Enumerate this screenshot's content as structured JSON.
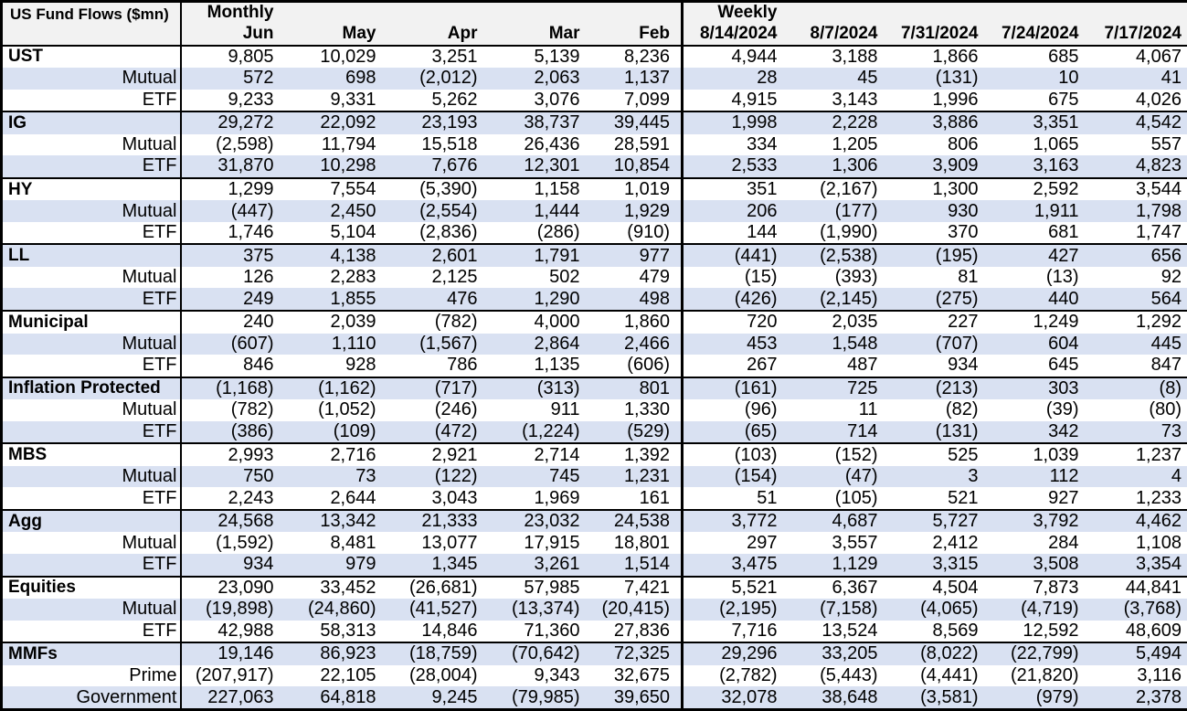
{
  "colors": {
    "band": "#D9E1F2",
    "header_bg": "#F2F2F2",
    "border": "#000000",
    "text": "#000000"
  },
  "header": {
    "corner_label": "US Fund Flows ($mn)",
    "monthly_label": "Monthly",
    "weekly_label": "Weekly"
  },
  "chart_data": {
    "type": "table",
    "title": "US Fund Flows ($mn)",
    "column_groups": [
      {
        "label": "Monthly",
        "columns": [
          "Jun",
          "May",
          "Apr",
          "Mar",
          "Feb"
        ]
      },
      {
        "label": "Weekly",
        "columns": [
          "8/14/2024",
          "8/7/2024",
          "7/31/2024",
          "7/24/2024",
          "7/17/2024"
        ]
      }
    ],
    "columns": [
      "Jun",
      "May",
      "Apr",
      "Mar",
      "Feb",
      "8/14/2024",
      "8/7/2024",
      "7/31/2024",
      "7/24/2024",
      "7/17/2024"
    ],
    "groups": [
      {
        "name": "UST",
        "rows": [
          {
            "label": "UST",
            "style": "group",
            "values": [
              "9,805",
              "10,029",
              "3,251",
              "5,139",
              "8,236",
              "4,944",
              "3,188",
              "1,866",
              "685",
              "4,067"
            ]
          },
          {
            "label": "Mutual",
            "style": "sub",
            "values": [
              "572",
              "698",
              "(2,012)",
              "2,063",
              "1,137",
              "28",
              "45",
              "(131)",
              "10",
              "41"
            ]
          },
          {
            "label": "ETF",
            "style": "sub",
            "values": [
              "9,233",
              "9,331",
              "5,262",
              "3,076",
              "7,099",
              "4,915",
              "3,143",
              "1,996",
              "675",
              "4,026"
            ]
          }
        ]
      },
      {
        "name": "IG",
        "rows": [
          {
            "label": "IG",
            "style": "group",
            "values": [
              "29,272",
              "22,092",
              "23,193",
              "38,737",
              "39,445",
              "1,998",
              "2,228",
              "3,886",
              "3,351",
              "4,542"
            ]
          },
          {
            "label": "Mutual",
            "style": "sub",
            "values": [
              "(2,598)",
              "11,794",
              "15,518",
              "26,436",
              "28,591",
              "334",
              "1,205",
              "806",
              "1,065",
              "557"
            ]
          },
          {
            "label": "ETF",
            "style": "sub",
            "values": [
              "31,870",
              "10,298",
              "7,676",
              "12,301",
              "10,854",
              "2,533",
              "1,306",
              "3,909",
              "3,163",
              "4,823"
            ]
          }
        ]
      },
      {
        "name": "HY",
        "rows": [
          {
            "label": "HY",
            "style": "group",
            "values": [
              "1,299",
              "7,554",
              "(5,390)",
              "1,158",
              "1,019",
              "351",
              "(2,167)",
              "1,300",
              "2,592",
              "3,544"
            ]
          },
          {
            "label": "Mutual",
            "style": "sub",
            "values": [
              "(447)",
              "2,450",
              "(2,554)",
              "1,444",
              "1,929",
              "206",
              "(177)",
              "930",
              "1,911",
              "1,798"
            ]
          },
          {
            "label": "ETF",
            "style": "sub",
            "values": [
              "1,746",
              "5,104",
              "(2,836)",
              "(286)",
              "(910)",
              "144",
              "(1,990)",
              "370",
              "681",
              "1,747"
            ]
          }
        ]
      },
      {
        "name": "LL",
        "rows": [
          {
            "label": "LL",
            "style": "group",
            "values": [
              "375",
              "4,138",
              "2,601",
              "1,791",
              "977",
              "(441)",
              "(2,538)",
              "(195)",
              "427",
              "656"
            ]
          },
          {
            "label": "Mutual",
            "style": "sub",
            "values": [
              "126",
              "2,283",
              "2,125",
              "502",
              "479",
              "(15)",
              "(393)",
              "81",
              "(13)",
              "92"
            ]
          },
          {
            "label": "ETF",
            "style": "sub",
            "values": [
              "249",
              "1,855",
              "476",
              "1,290",
              "498",
              "(426)",
              "(2,145)",
              "(275)",
              "440",
              "564"
            ]
          }
        ]
      },
      {
        "name": "Municipal",
        "rows": [
          {
            "label": "Municipal",
            "style": "group",
            "values": [
              "240",
              "2,039",
              "(782)",
              "4,000",
              "1,860",
              "720",
              "2,035",
              "227",
              "1,249",
              "1,292"
            ]
          },
          {
            "label": "Mutual",
            "style": "sub",
            "values": [
              "(607)",
              "1,110",
              "(1,567)",
              "2,864",
              "2,466",
              "453",
              "1,548",
              "(707)",
              "604",
              "445"
            ]
          },
          {
            "label": "ETF",
            "style": "sub",
            "values": [
              "846",
              "928",
              "786",
              "1,135",
              "(606)",
              "267",
              "487",
              "934",
              "645",
              "847"
            ]
          }
        ]
      },
      {
        "name": "Inflation Protected",
        "rows": [
          {
            "label": "Inflation Protected",
            "style": "group",
            "values": [
              "(1,168)",
              "(1,162)",
              "(717)",
              "(313)",
              "801",
              "(161)",
              "725",
              "(213)",
              "303",
              "(8)"
            ]
          },
          {
            "label": "Mutual",
            "style": "sub",
            "values": [
              "(782)",
              "(1,052)",
              "(246)",
              "911",
              "1,330",
              "(96)",
              "11",
              "(82)",
              "(39)",
              "(80)"
            ]
          },
          {
            "label": "ETF",
            "style": "sub",
            "values": [
              "(386)",
              "(109)",
              "(472)",
              "(1,224)",
              "(529)",
              "(65)",
              "714",
              "(131)",
              "342",
              "73"
            ]
          }
        ]
      },
      {
        "name": "MBS",
        "rows": [
          {
            "label": "MBS",
            "style": "group",
            "values": [
              "2,993",
              "2,716",
              "2,921",
              "2,714",
              "1,392",
              "(103)",
              "(152)",
              "525",
              "1,039",
              "1,237"
            ]
          },
          {
            "label": "Mutual",
            "style": "sub",
            "values": [
              "750",
              "73",
              "(122)",
              "745",
              "1,231",
              "(154)",
              "(47)",
              "3",
              "112",
              "4"
            ]
          },
          {
            "label": "ETF",
            "style": "sub",
            "values": [
              "2,243",
              "2,644",
              "3,043",
              "1,969",
              "161",
              "51",
              "(105)",
              "521",
              "927",
              "1,233"
            ]
          }
        ]
      },
      {
        "name": "Agg",
        "rows": [
          {
            "label": "Agg",
            "style": "group",
            "values": [
              "24,568",
              "13,342",
              "21,333",
              "23,032",
              "24,538",
              "3,772",
              "4,687",
              "5,727",
              "3,792",
              "4,462"
            ]
          },
          {
            "label": "Mutual",
            "style": "sub",
            "values": [
              "(1,592)",
              "8,481",
              "13,077",
              "17,915",
              "18,801",
              "297",
              "3,557",
              "2,412",
              "284",
              "1,108"
            ]
          },
          {
            "label": "ETF",
            "style": "sub",
            "values": [
              "934",
              "979",
              "1,345",
              "3,261",
              "1,514",
              "3,475",
              "1,129",
              "3,315",
              "3,508",
              "3,354"
            ]
          }
        ]
      },
      {
        "name": "Equities",
        "rows": [
          {
            "label": "Equities",
            "style": "group",
            "values": [
              "23,090",
              "33,452",
              "(26,681)",
              "57,985",
              "7,421",
              "5,521",
              "6,367",
              "4,504",
              "7,873",
              "44,841"
            ]
          },
          {
            "label": "Mutual",
            "style": "sub",
            "values": [
              "(19,898)",
              "(24,860)",
              "(41,527)",
              "(13,374)",
              "(20,415)",
              "(2,195)",
              "(7,158)",
              "(4,065)",
              "(4,719)",
              "(3,768)"
            ]
          },
          {
            "label": "ETF",
            "style": "sub",
            "values": [
              "42,988",
              "58,313",
              "14,846",
              "71,360",
              "27,836",
              "7,716",
              "13,524",
              "8,569",
              "12,592",
              "48,609"
            ]
          }
        ]
      },
      {
        "name": "MMFs",
        "rows": [
          {
            "label": "MMFs",
            "style": "group",
            "values": [
              "19,146",
              "86,923",
              "(18,759)",
              "(70,642)",
              "72,325",
              "29,296",
              "33,205",
              "(8,022)",
              "(22,799)",
              "5,494"
            ]
          },
          {
            "label": "Prime",
            "style": "sub",
            "values": [
              "(207,917)",
              "22,105",
              "(28,004)",
              "9,343",
              "32,675",
              "(2,782)",
              "(5,443)",
              "(4,441)",
              "(21,820)",
              "3,116"
            ]
          },
          {
            "label": "Government",
            "style": "sub",
            "values": [
              "227,063",
              "64,818",
              "9,245",
              "(79,985)",
              "39,650",
              "32,078",
              "38,648",
              "(3,581)",
              "(979)",
              "2,378"
            ]
          }
        ]
      }
    ]
  }
}
